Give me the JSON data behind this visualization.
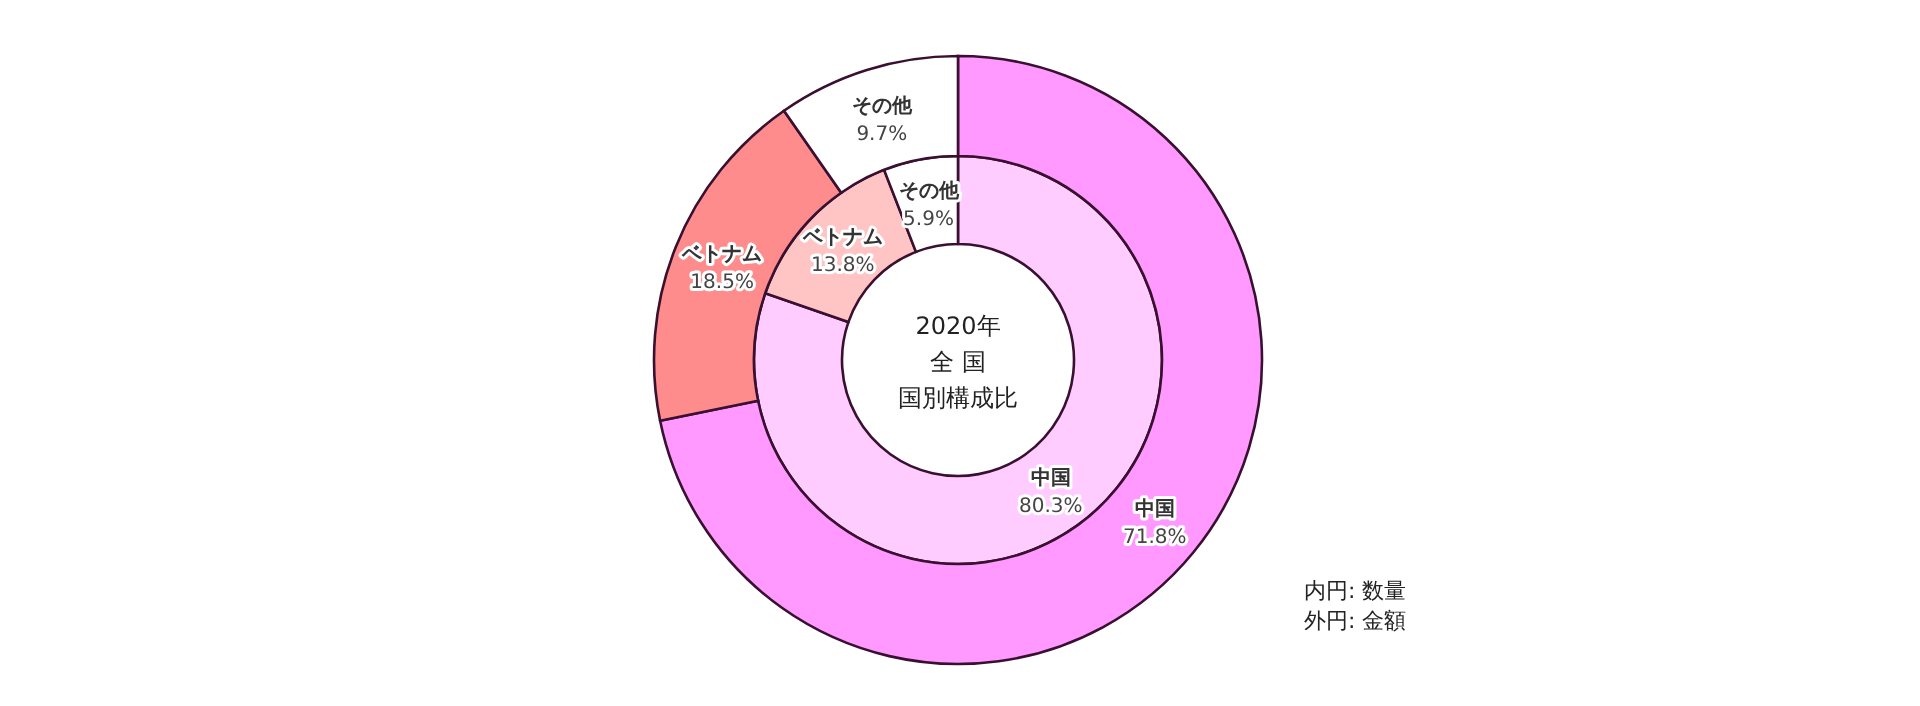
{
  "chart_data": {
    "type": "donut",
    "title": "2020年",
    "subtitle": "全 国",
    "categories": [
      "中国",
      "ベトナム",
      "その他"
    ],
    "series": [
      {
        "colors": [
          "#ffccff",
          "#ffc4c4",
          "#ffffff"
        ],
        "values": [
          80.3,
          13.8,
          5.9
        ],
        "value_labels": [
          "80.3%",
          "13.8%",
          "5.9%"
        ]
      },
      {
        "colors": [
          "#ff99ff",
          "#ff8c8c",
          "#ffffff"
        ],
        "values": [
          71.8,
          18.5,
          9.7
        ],
        "value_labels": [
          "71.8%",
          "18.5%",
          "9.7%"
        ]
      }
    ],
    "annotations": [
      "国別構成比",
      "内円: 数量",
      "外円: 金額"
    ]
  }
}
